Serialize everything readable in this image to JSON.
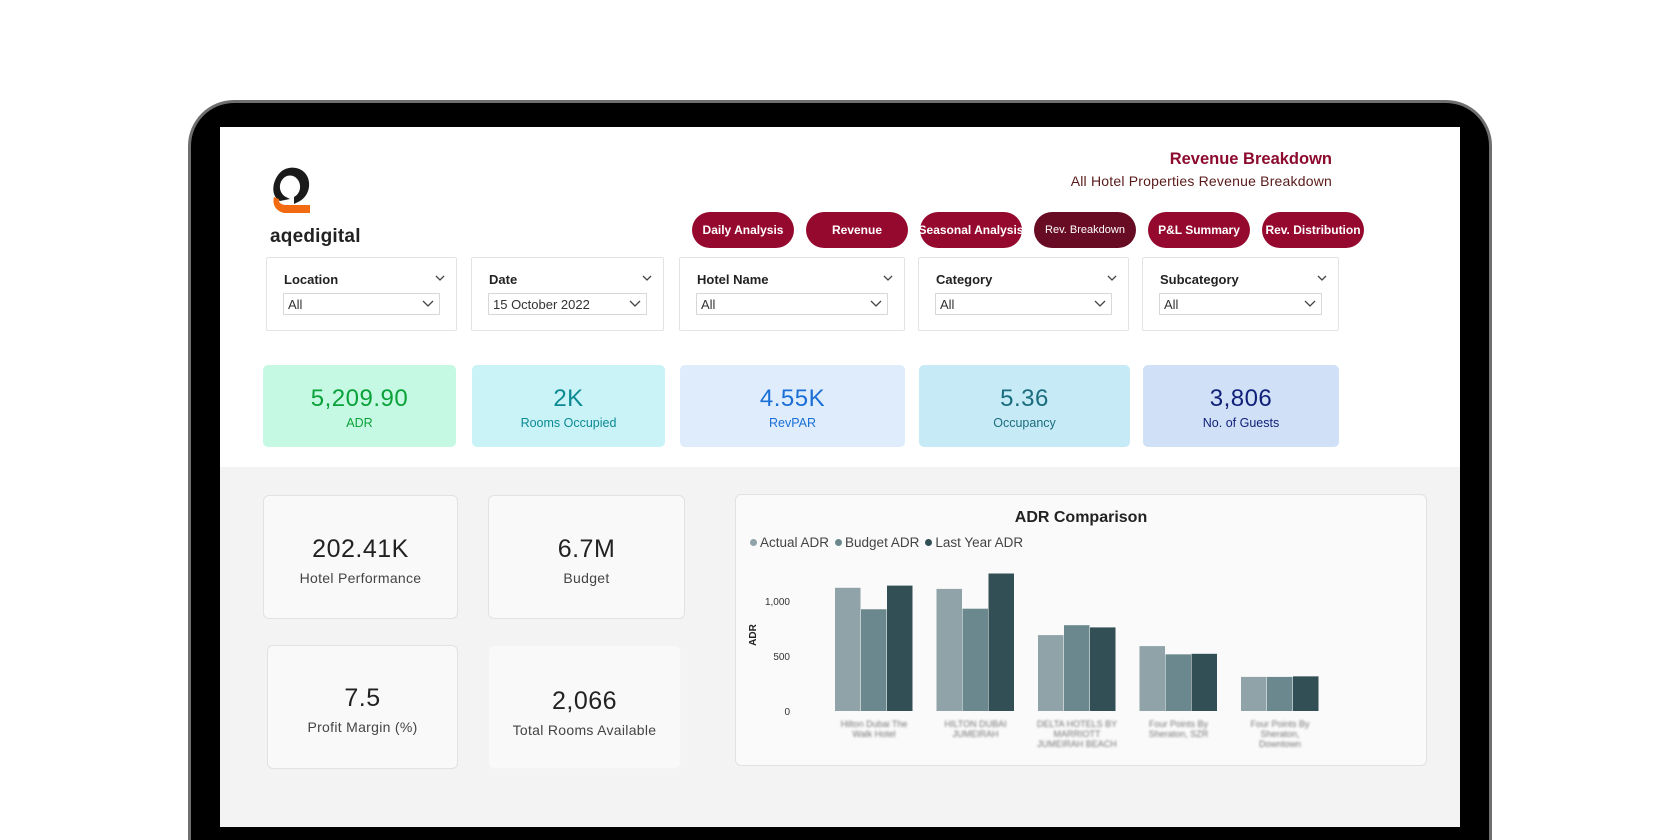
{
  "header": {
    "logo_text": "aqedigital",
    "title": "Revenue Breakdown",
    "subtitle": "All Hotel Properties Revenue Breakdown"
  },
  "nav": [
    {
      "label": "Daily Analysis",
      "active": false
    },
    {
      "label": "Revenue",
      "active": false
    },
    {
      "label": "Seasonal Analysis",
      "active": false
    },
    {
      "label": "Rev. Breakdown",
      "active": true
    },
    {
      "label": "P&L Summary",
      "active": false
    },
    {
      "label": "Rev. Distribution",
      "active": false
    }
  ],
  "filters": [
    {
      "label": "Location",
      "value": "All"
    },
    {
      "label": "Date",
      "value": "15 October 2022"
    },
    {
      "label": "Hotel Name",
      "value": "All"
    },
    {
      "label": "Category",
      "value": "All"
    },
    {
      "label": "Subcategory",
      "value": "All"
    }
  ],
  "kpis": [
    {
      "value": "5,209.90",
      "label": "ADR",
      "bg": "#c6f9e4",
      "color": "#0aa239"
    },
    {
      "value": "2K",
      "label": "Rooms Occupied",
      "bg": "#c9f3f7",
      "color": "#0b8a93"
    },
    {
      "value": "4.55K",
      "label": "RevPAR",
      "bg": "#deecfc",
      "color": "#1a6fd6"
    },
    {
      "value": "5.36",
      "label": "Occupancy",
      "bg": "#c6ebf6",
      "color": "#1a6c7e"
    },
    {
      "value": "3,806",
      "label": "No. of Guests",
      "bg": "#cfe0f7",
      "color": "#101f78"
    }
  ],
  "cards": [
    {
      "value": "202.41K",
      "label": "Hotel Performance"
    },
    {
      "value": "6.7M",
      "label": "Budget"
    },
    {
      "value": "7.5",
      "label": "Profit Margin (%)"
    },
    {
      "value": "2,066",
      "label": "Total Rooms Available"
    }
  ],
  "chart_data": {
    "type": "bar",
    "title": "ADR Comparison",
    "ylabel": "ADR",
    "xlabel": "",
    "ylim": [
      0,
      1250
    ],
    "yticks": [
      "0",
      "500",
      "1,000"
    ],
    "legend_position": "top-left",
    "grid": false,
    "categories": [
      "Hilton Dubai The Walk Hotel",
      "HILTON DUBAI JUMEIRAH",
      "DELTA HOTELS BY MARRIOTT JUMEIRAH BEACH",
      "Four Points By Sheraton, SZR",
      "Four Points By Sheraton, Downtown"
    ],
    "category_lines": [
      [
        "Hilton Dubai The",
        "Walk Hotel"
      ],
      [
        "HILTON DUBAI",
        "JUMEIRAH"
      ],
      [
        "DELTA HOTELS BY",
        "MARRIOTT",
        "JUMEIRAH BEACH"
      ],
      [
        "Four Points By",
        "Sheraton, SZR"
      ],
      [
        "Four Points By",
        "Sheraton,",
        "Downtown"
      ]
    ],
    "series": [
      {
        "name": "Actual ADR",
        "color": "#8fa3a8",
        "values": [
          1120,
          1110,
          690,
          590,
          310
        ]
      },
      {
        "name": "Budget ADR",
        "color": "#6a888d",
        "values": [
          925,
          930,
          780,
          515,
          310
        ]
      },
      {
        "name": "Last Year ADR",
        "color": "#324f55",
        "values": [
          1140,
          1250,
          760,
          520,
          315
        ]
      }
    ]
  }
}
